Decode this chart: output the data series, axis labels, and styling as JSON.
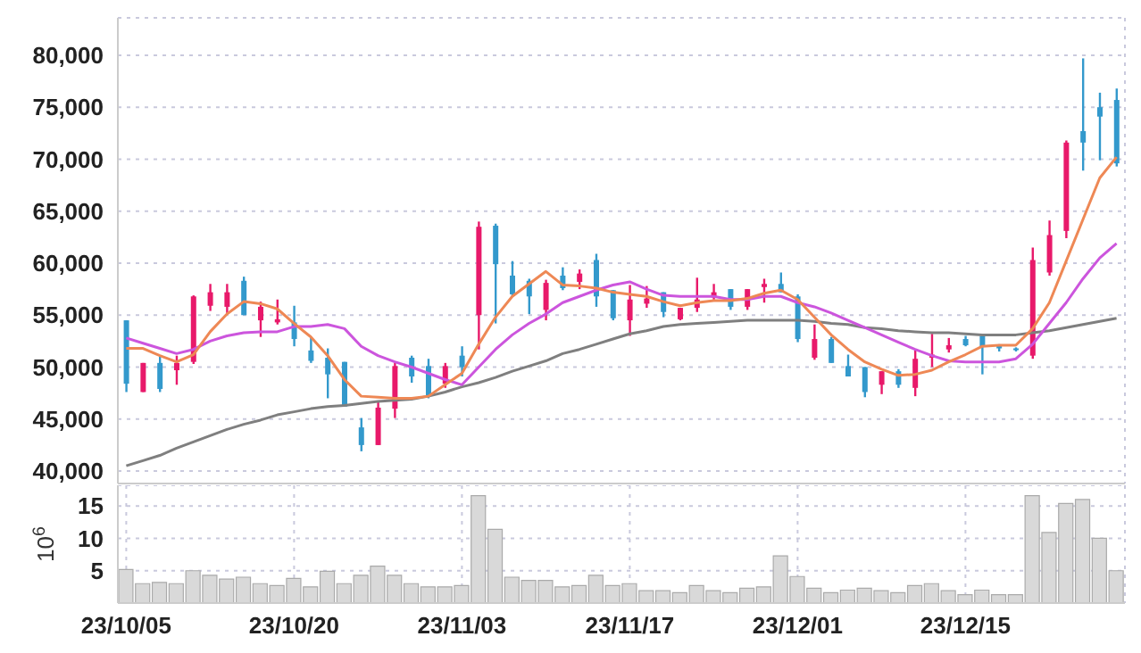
{
  "chart_data": [
    {
      "type": "candlestick",
      "categories": [
        null,
        null,
        null,
        null,
        null,
        null,
        null,
        null,
        null,
        null,
        null,
        null,
        null,
        null,
        null,
        null,
        null,
        null,
        null,
        null,
        null,
        null,
        null,
        null,
        null,
        null,
        null,
        null,
        null,
        null,
        null,
        null,
        null,
        null,
        null,
        null,
        null,
        null,
        null,
        null,
        null,
        null,
        null,
        null,
        null,
        null,
        null,
        null,
        null,
        null,
        null,
        null,
        null,
        null,
        null,
        null,
        null,
        null,
        null,
        null
      ],
      "ohlc": [
        [
          54500,
          54500,
          47600,
          48400
        ],
        [
          47600,
          50400,
          47600,
          50400
        ],
        [
          50400,
          51000,
          47600,
          47900
        ],
        [
          49700,
          51100,
          48300,
          50400
        ],
        [
          50500,
          56900,
          50300,
          56800
        ],
        [
          55900,
          58000,
          55400,
          57200
        ],
        [
          55800,
          58000,
          55200,
          57200
        ],
        [
          58300,
          58700,
          55000,
          55000
        ],
        [
          54500,
          56300,
          52900,
          55800
        ],
        [
          54300,
          56500,
          54100,
          54600
        ],
        [
          54300,
          55900,
          52000,
          52700
        ],
        [
          51600,
          52800,
          50400,
          50600
        ],
        [
          50900,
          51800,
          47000,
          49300
        ],
        [
          50500,
          50500,
          46200,
          46200
        ],
        [
          44200,
          45100,
          41900,
          42500
        ],
        [
          42500,
          46700,
          42500,
          46100
        ],
        [
          46000,
          50400,
          45100,
          50100
        ],
        [
          50900,
          51100,
          48500,
          49100
        ],
        [
          50100,
          50800,
          47000,
          47200
        ],
        [
          48400,
          50400,
          48000,
          50100
        ],
        [
          51100,
          52000,
          49100,
          50000
        ],
        [
          55000,
          64000,
          51700,
          63500
        ],
        [
          63600,
          63800,
          54200,
          59900
        ],
        [
          58800,
          60200,
          56800,
          57000
        ],
        [
          58300,
          58500,
          55100,
          56800
        ],
        [
          55500,
          58400,
          54500,
          58100
        ],
        [
          58800,
          59600,
          57400,
          57600
        ],
        [
          58200,
          59400,
          57500,
          59000
        ],
        [
          60300,
          60900,
          55800,
          56800
        ],
        [
          57400,
          57400,
          54500,
          54700
        ],
        [
          54500,
          57900,
          53000,
          56500
        ],
        [
          56100,
          57800,
          55700,
          56600
        ],
        [
          57200,
          57200,
          54800,
          55300
        ],
        [
          54600,
          55700,
          54500,
          55700
        ],
        [
          55700,
          58600,
          55300,
          56500
        ],
        [
          56700,
          58000,
          56500,
          57200
        ],
        [
          57500,
          57500,
          55500,
          55800
        ],
        [
          55800,
          57500,
          55500,
          57500
        ],
        [
          57700,
          58500,
          56200,
          58000
        ],
        [
          58000,
          59100,
          57200,
          57200
        ],
        [
          56800,
          57000,
          52400,
          52700
        ],
        [
          50900,
          54100,
          50700,
          52700
        ],
        [
          52700,
          52900,
          50400,
          50400
        ],
        [
          50100,
          51200,
          49100,
          49100
        ],
        [
          50000,
          50000,
          47100,
          47600
        ],
        [
          48300,
          49600,
          47400,
          49600
        ],
        [
          49600,
          49800,
          48000,
          48300
        ],
        [
          48000,
          51600,
          47200,
          50800
        ],
        [
          50900,
          53200,
          50000,
          51200
        ],
        [
          51700,
          52800,
          51400,
          52100
        ],
        [
          52700,
          53000,
          52000,
          52100
        ],
        [
          53000,
          53000,
          49300,
          52000
        ],
        [
          52100,
          52200,
          51500,
          51800
        ],
        [
          51800,
          51900,
          51500,
          51700
        ],
        [
          51100,
          61500,
          50800,
          60300
        ],
        [
          59100,
          64100,
          58800,
          62700
        ],
        [
          63100,
          71800,
          62400,
          71600
        ],
        [
          72700,
          79700,
          68900,
          71600
        ],
        [
          75000,
          76400,
          69900,
          74100
        ],
        [
          75700,
          76800,
          69300,
          69600
        ]
      ],
      "colors": [
        "#3399cc",
        "#e8196a",
        "#3399cc",
        "#e8196a",
        "#e8196a",
        "#e8196a",
        "#e8196a",
        "#3399cc",
        "#e8196a",
        "#e8196a",
        "#3399cc",
        "#3399cc",
        "#3399cc",
        "#3399cc",
        "#3399cc",
        "#e8196a",
        "#e8196a",
        "#3399cc",
        "#3399cc",
        "#e8196a",
        "#3399cc",
        "#e8196a",
        "#3399cc",
        "#3399cc",
        "#3399cc",
        "#e8196a",
        "#3399cc",
        "#e8196a",
        "#3399cc",
        "#3399cc",
        "#e8196a",
        "#e8196a",
        "#3399cc",
        "#e8196a",
        "#e8196a",
        "#e8196a",
        "#3399cc",
        "#e8196a",
        "#e8196a",
        "#3399cc",
        "#3399cc",
        "#e8196a",
        "#3399cc",
        "#3399cc",
        "#3399cc",
        "#e8196a",
        "#3399cc",
        "#e8196a",
        "#e8196a",
        "#e8196a",
        "#3399cc",
        "#3399cc",
        "#3399cc",
        "#3399cc",
        "#e8196a",
        "#e8196a",
        "#e8196a",
        "#3399cc",
        "#3399cc",
        "#3399cc"
      ],
      "series": [
        {
          "type": "line",
          "color": "#7f7f7f",
          "values": [
            40500,
            41000,
            41500,
            42200,
            42800,
            43400,
            44000,
            44500,
            44900,
            45400,
            45700,
            46000,
            46200,
            46300,
            46500,
            46700,
            46800,
            46900,
            47200,
            47600,
            48100,
            48500,
            49000,
            49600,
            50100,
            50600,
            51300,
            51700,
            52200,
            52700,
            53200,
            53500,
            53900,
            54100,
            54200,
            54300,
            54400,
            54500,
            54500,
            54500,
            54500,
            54400,
            54200,
            54100,
            53800,
            53700,
            53500,
            53400,
            53300,
            53300,
            53200,
            53100,
            53100,
            53100,
            53300,
            53500,
            53800,
            54100,
            54400,
            54700
          ]
        },
        {
          "type": "line",
          "color": "#cc55dd",
          "values": [
            52800,
            52300,
            51800,
            51300,
            51700,
            52500,
            53000,
            53300,
            53400,
            53400,
            53900,
            53900,
            54100,
            53700,
            52000,
            51100,
            50500,
            50000,
            49400,
            48800,
            48300,
            50000,
            51700,
            53100,
            54200,
            55100,
            56200,
            56800,
            57400,
            57900,
            58200,
            57500,
            56900,
            56800,
            56800,
            56800,
            56500,
            56500,
            56800,
            56800,
            56200,
            55800,
            55200,
            54500,
            53800,
            53100,
            52400,
            51700,
            51100,
            50600,
            50500,
            50500,
            50500,
            50800,
            52200,
            54200,
            56200,
            58500,
            60500,
            61900
          ]
        },
        {
          "type": "line",
          "color": "#ee8855",
          "values": [
            51800,
            51800,
            51100,
            50500,
            51200,
            53400,
            55100,
            56300,
            56100,
            55600,
            54200,
            52900,
            51100,
            48800,
            47200,
            47100,
            47000,
            47000,
            47200,
            48300,
            49400,
            52200,
            54800,
            56800,
            58000,
            59200,
            57900,
            57800,
            57600,
            57200,
            57000,
            56800,
            56300,
            55900,
            56200,
            56400,
            56400,
            56600,
            57100,
            57400,
            56500,
            54800,
            53100,
            51700,
            50500,
            49800,
            49200,
            49300,
            49700,
            50500,
            51200,
            52000,
            52100,
            52100,
            53700,
            56200,
            60200,
            64200,
            68200,
            70200
          ]
        }
      ],
      "ylim": [
        38800,
        83600
      ],
      "yticks": [
        {
          "value": 40000,
          "label": "40,000"
        },
        {
          "value": 45000,
          "label": "45,000"
        },
        {
          "value": 50000,
          "label": "50,000"
        },
        {
          "value": 55000,
          "label": "55,000"
        },
        {
          "value": 60000,
          "label": "60,000"
        },
        {
          "value": 65000,
          "label": "65,000"
        },
        {
          "value": 70000,
          "label": "70,000"
        },
        {
          "value": 75000,
          "label": "75,000"
        },
        {
          "value": 80000,
          "label": "80,000"
        }
      ],
      "grid": true,
      "tick_labels": "y"
    },
    {
      "type": "bar",
      "categories": [
        "23/10/05",
        null,
        null,
        null,
        null,
        null,
        null,
        null,
        null,
        null,
        "23/10/20",
        null,
        null,
        null,
        null,
        null,
        null,
        null,
        null,
        null,
        "23/11/03",
        null,
        null,
        null,
        null,
        null,
        null,
        null,
        null,
        null,
        "23/11/17",
        null,
        null,
        null,
        null,
        null,
        null,
        null,
        null,
        null,
        "23/12/01",
        null,
        null,
        null,
        null,
        null,
        null,
        null,
        null,
        null,
        "23/12/15",
        null,
        null,
        null,
        null,
        null,
        null,
        null,
        null,
        null
      ],
      "values": [
        5.2,
        3.0,
        3.2,
        3.0,
        5.0,
        4.3,
        3.7,
        4.0,
        3.0,
        2.7,
        3.8,
        2.5,
        4.9,
        3.0,
        4.3,
        5.7,
        4.3,
        3.0,
        2.5,
        2.5,
        2.7,
        16.6,
        11.4,
        4.0,
        3.5,
        3.5,
        2.5,
        2.7,
        4.3,
        2.7,
        3.0,
        1.9,
        1.9,
        1.6,
        2.7,
        1.9,
        1.6,
        2.3,
        2.5,
        7.3,
        4.1,
        2.3,
        1.6,
        2.0,
        2.3,
        1.9,
        1.6,
        2.7,
        3.0,
        1.9,
        1.3,
        2.0,
        1.3,
        1.3,
        16.6,
        10.9,
        15.4,
        16.0,
        10.0,
        5.0
      ],
      "color": "#d9d9d9",
      "ylabel": "10$^{6}$",
      "ylim": [
        0,
        18.2
      ],
      "yticks": [
        5,
        10,
        15
      ],
      "grid": true
    }
  ]
}
